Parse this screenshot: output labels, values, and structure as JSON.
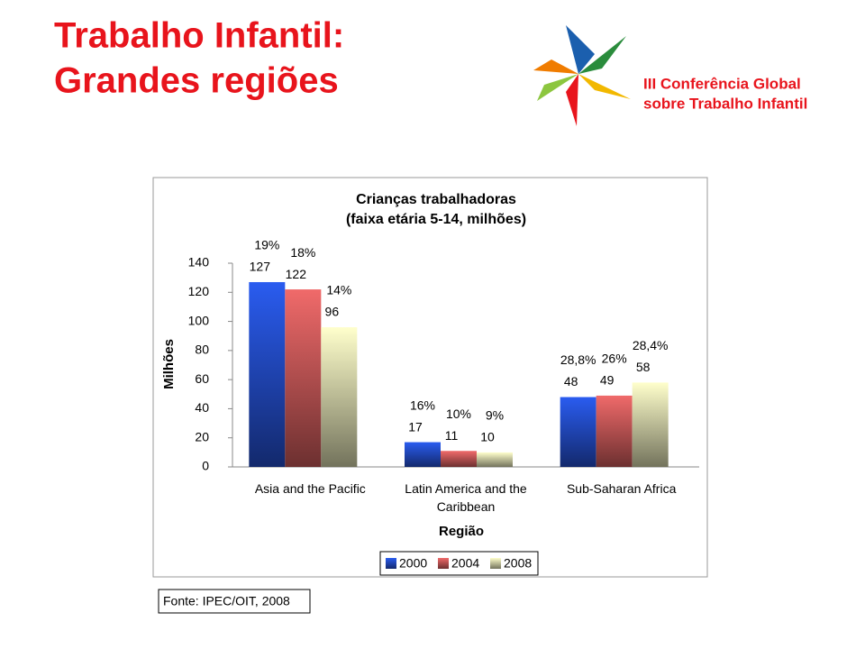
{
  "header": {
    "title_lines": [
      "Trabalho Infantil:",
      "Grandes regiões"
    ],
    "logo_lines": [
      "III Conferência Global",
      "sobre Trabalho Infantil"
    ]
  },
  "chart_data": {
    "type": "bar",
    "title_lines": [
      "Crianças trabalhadoras",
      "(faixa etária 5-14, milhões)"
    ],
    "y_label": "Milhões",
    "x_label": "Região",
    "categories": [
      "Asia and the Pacific",
      "Latin America and the Caribbean",
      "Sub-Saharan Africa"
    ],
    "series": [
      {
        "name": "2000",
        "color": "#2a5cf0",
        "values": [
          127,
          17,
          48
        ],
        "shares": [
          "19%",
          "16%",
          "28,8%"
        ]
      },
      {
        "name": "2004",
        "color": "#f06a6a",
        "values": [
          122,
          11,
          49
        ],
        "shares": [
          "18%",
          "10%",
          "26%"
        ]
      },
      {
        "name": "2008",
        "color": "#ffffcc",
        "values": [
          96,
          10,
          58
        ],
        "shares": [
          "14%",
          "9%",
          "28,4%"
        ]
      }
    ],
    "ylim": [
      0,
      140
    ],
    "yticks": [
      0,
      20,
      40,
      60,
      80,
      100,
      120,
      140
    ]
  },
  "footer": {
    "source": "Fonte: IPEC/OIT, 2008"
  }
}
